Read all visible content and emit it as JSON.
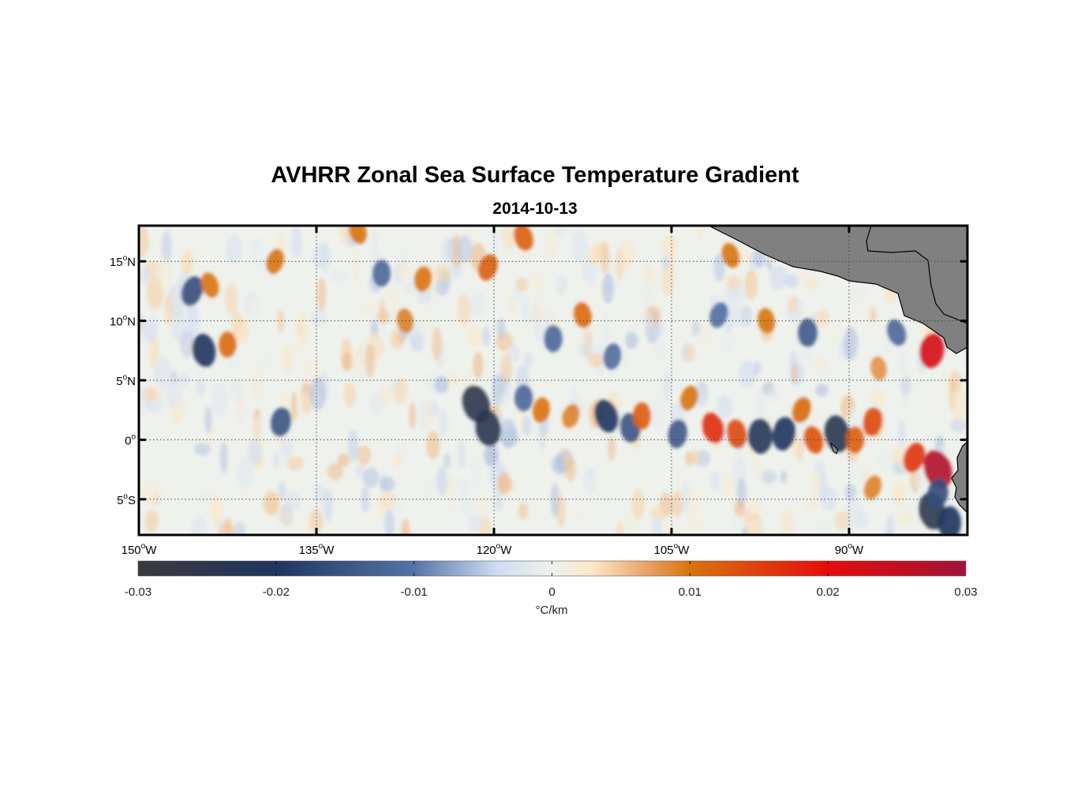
{
  "title": "AVHRR Zonal Sea Surface Temperature Gradient",
  "subtitle": "2014-10-13",
  "map": {
    "lon_range": [
      -150,
      -80
    ],
    "lat_range": [
      -8,
      18
    ],
    "lon_ticks": [
      {
        "value": -150,
        "num": "150",
        "hemi": "W"
      },
      {
        "value": -135,
        "num": "135",
        "hemi": "W"
      },
      {
        "value": -120,
        "num": "120",
        "hemi": "W"
      },
      {
        "value": -105,
        "num": "105",
        "hemi": "W"
      },
      {
        "value": -90,
        "num": "90",
        "hemi": "W"
      }
    ],
    "lat_ticks": [
      {
        "value": 15,
        "num": "15",
        "hemi": "N"
      },
      {
        "value": 10,
        "num": "10",
        "hemi": "N"
      },
      {
        "value": 5,
        "num": "5",
        "hemi": "N"
      },
      {
        "value": 0,
        "num": "0",
        "hemi": ""
      },
      {
        "value": -5,
        "num": "5",
        "hemi": "S"
      }
    ],
    "land_color": "#808080",
    "gridlines": "dotted"
  },
  "colorbar": {
    "range": [
      -0.03,
      0.03
    ],
    "ticks": [
      "-0.03",
      "-0.02",
      "-0.01",
      "0",
      "0.01",
      "0.02",
      "0.03"
    ],
    "tick_values": [
      -0.03,
      -0.02,
      -0.01,
      0,
      0.01,
      0.02,
      0.03
    ],
    "label": "°C/km",
    "stops": [
      {
        "v": -0.03,
        "c": "#3a3a3e"
      },
      {
        "v": -0.02,
        "c": "#1f3560"
      },
      {
        "v": -0.01,
        "c": "#5673a8"
      },
      {
        "v": -0.004,
        "c": "#cfdcf2"
      },
      {
        "v": 0,
        "c": "#eef2ee"
      },
      {
        "v": 0.003,
        "c": "#fde6c4"
      },
      {
        "v": 0.007,
        "c": "#e9a066"
      },
      {
        "v": 0.01,
        "c": "#d9730c"
      },
      {
        "v": 0.02,
        "c": "#e50c0c"
      },
      {
        "v": 0.03,
        "c": "#a11336"
      }
    ]
  },
  "chart_data": {
    "type": "heatmap",
    "title": "AVHRR Zonal Sea Surface Temperature Gradient",
    "subtitle": "2014-10-13",
    "x_axis": "longitude",
    "y_axis": "latitude",
    "xlim": [
      -150,
      -80
    ],
    "ylim": [
      -8,
      18
    ],
    "value_range": [
      -0.03,
      0.03
    ],
    "unit": "°C/km",
    "features": [
      {
        "lon": -121.5,
        "lat": 3.0,
        "value": -0.026
      },
      {
        "lon": -120.5,
        "lat": 1.0,
        "value": -0.024
      },
      {
        "lon": -117.5,
        "lat": 3.5,
        "value": -0.012
      },
      {
        "lon": -116.0,
        "lat": 2.5,
        "value": 0.01
      },
      {
        "lon": -113.5,
        "lat": 2.0,
        "value": 0.009
      },
      {
        "lon": -110.5,
        "lat": 2.0,
        "value": -0.02
      },
      {
        "lon": -108.5,
        "lat": 1.0,
        "value": -0.015
      },
      {
        "lon": -107.5,
        "lat": 2.0,
        "value": 0.012
      },
      {
        "lon": -104.5,
        "lat": 0.5,
        "value": -0.014
      },
      {
        "lon": -103.5,
        "lat": 3.5,
        "value": 0.01
      },
      {
        "lon": -101.5,
        "lat": 1.0,
        "value": 0.017
      },
      {
        "lon": -99.5,
        "lat": 0.5,
        "value": 0.014
      },
      {
        "lon": -97.5,
        "lat": 0.3,
        "value": -0.022
      },
      {
        "lon": -95.5,
        "lat": 0.5,
        "value": -0.02
      },
      {
        "lon": -94.0,
        "lat": 2.5,
        "value": 0.011
      },
      {
        "lon": -93.0,
        "lat": 0.0,
        "value": 0.013
      },
      {
        "lon": -91.0,
        "lat": 0.5,
        "value": -0.024
      },
      {
        "lon": -89.5,
        "lat": 0.0,
        "value": 0.012
      },
      {
        "lon": -88.0,
        "lat": 1.5,
        "value": 0.014
      },
      {
        "lon": -84.5,
        "lat": -1.5,
        "value": 0.016
      },
      {
        "lon": -82.5,
        "lat": -2.5,
        "value": 0.027
      },
      {
        "lon": -83.0,
        "lat": -6.0,
        "value": -0.025
      },
      {
        "lon": -81.5,
        "lat": -7.0,
        "value": -0.02
      },
      {
        "lon": -83.0,
        "lat": 7.5,
        "value": 0.022
      },
      {
        "lon": -145.5,
        "lat": 12.5,
        "value": -0.016
      },
      {
        "lon": -144.0,
        "lat": 13.0,
        "value": 0.01
      },
      {
        "lon": -144.5,
        "lat": 7.5,
        "value": -0.02
      },
      {
        "lon": -142.5,
        "lat": 8.0,
        "value": 0.011
      },
      {
        "lon": -138.0,
        "lat": 1.5,
        "value": -0.015
      },
      {
        "lon": -138.5,
        "lat": 15.0,
        "value": 0.01
      },
      {
        "lon": -131.5,
        "lat": 17.5,
        "value": 0.01
      },
      {
        "lon": -127.5,
        "lat": 10.0,
        "value": 0.009
      },
      {
        "lon": -129.5,
        "lat": 14.0,
        "value": -0.012
      },
      {
        "lon": -126.0,
        "lat": 13.5,
        "value": 0.01
      },
      {
        "lon": -120.5,
        "lat": 14.5,
        "value": 0.012
      },
      {
        "lon": -117.5,
        "lat": 17.0,
        "value": 0.012
      },
      {
        "lon": -112.5,
        "lat": 10.5,
        "value": 0.011
      },
      {
        "lon": -115.0,
        "lat": 8.5,
        "value": -0.012
      },
      {
        "lon": -110.0,
        "lat": 7.0,
        "value": -0.011
      },
      {
        "lon": -101.0,
        "lat": 10.5,
        "value": -0.011
      },
      {
        "lon": -100.0,
        "lat": 15.5,
        "value": 0.01
      },
      {
        "lon": -97.0,
        "lat": 10.0,
        "value": 0.01
      },
      {
        "lon": -93.5,
        "lat": 9.0,
        "value": -0.014
      },
      {
        "lon": -82.5,
        "lat": -4.5,
        "value": -0.016
      },
      {
        "lon": -88.0,
        "lat": -4.0,
        "value": 0.009
      },
      {
        "lon": -86.0,
        "lat": 9.0,
        "value": -0.012
      },
      {
        "lon": -87.5,
        "lat": 6.0,
        "value": 0.008
      }
    ]
  }
}
